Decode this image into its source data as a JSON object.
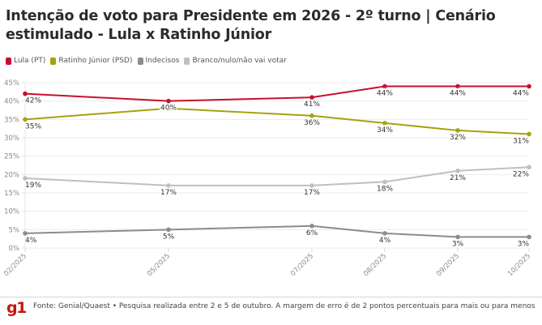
{
  "header": {
    "title": "Intenção de voto para Presidente em 2026 - 2º turno | Cenário estimulado - Lula x Ratinho Júnior"
  },
  "footer": {
    "logo": "g1",
    "source": "Fonte: Genial/Quaest • Pesquisa realizada entre 2 e 5 de outubro. A margem de erro é de 2 pontos percentuais para mais ou para menos"
  },
  "chart_data": {
    "type": "line",
    "title": "Intenção de voto para Presidente em 2026 - 2º turno | Cenário estimulado - Lula x Ratinho Júnior",
    "xlabel": "",
    "ylabel": "",
    "x": [
      "02/2025",
      "05/2025",
      "07/2025",
      "08/2025",
      "09/2025",
      "10/2025"
    ],
    "ylim": [
      0,
      45
    ],
    "yticks": [
      "0%",
      "5%",
      "10%",
      "15%",
      "20%",
      "25%",
      "30%",
      "35%",
      "40%",
      "45%"
    ],
    "ytick_values": [
      0,
      5,
      10,
      15,
      20,
      25,
      30,
      35,
      40,
      45
    ],
    "grid": true,
    "legend_position": "top-left",
    "series": [
      {
        "name": "Lula (PT)",
        "color": "#c8102e",
        "values": [
          42,
          40,
          41,
          44,
          44,
          44
        ],
        "labels": [
          "42%",
          "40%",
          "41%",
          "44%",
          "44%",
          "44%"
        ]
      },
      {
        "name": "Ratinho Júnior (PSD)",
        "color": "#a6a20f",
        "values": [
          35,
          38,
          36,
          34,
          32,
          31
        ],
        "labels": [
          "35%",
          "",
          "36%",
          "34%",
          "32%",
          "31%"
        ]
      },
      {
        "name": "Indecisos",
        "color": "#8c8c8c",
        "values": [
          4,
          5,
          6,
          4,
          3,
          3
        ],
        "labels": [
          "4%",
          "5%",
          "6%",
          "4%",
          "3%",
          "3%"
        ]
      },
      {
        "name": "Branco/nulo/não vai votar",
        "color": "#bfbfbf",
        "values": [
          19,
          17,
          17,
          18,
          21,
          22
        ],
        "labels": [
          "19%",
          "17%",
          "17%",
          "18%",
          "21%",
          "22%"
        ]
      }
    ]
  }
}
